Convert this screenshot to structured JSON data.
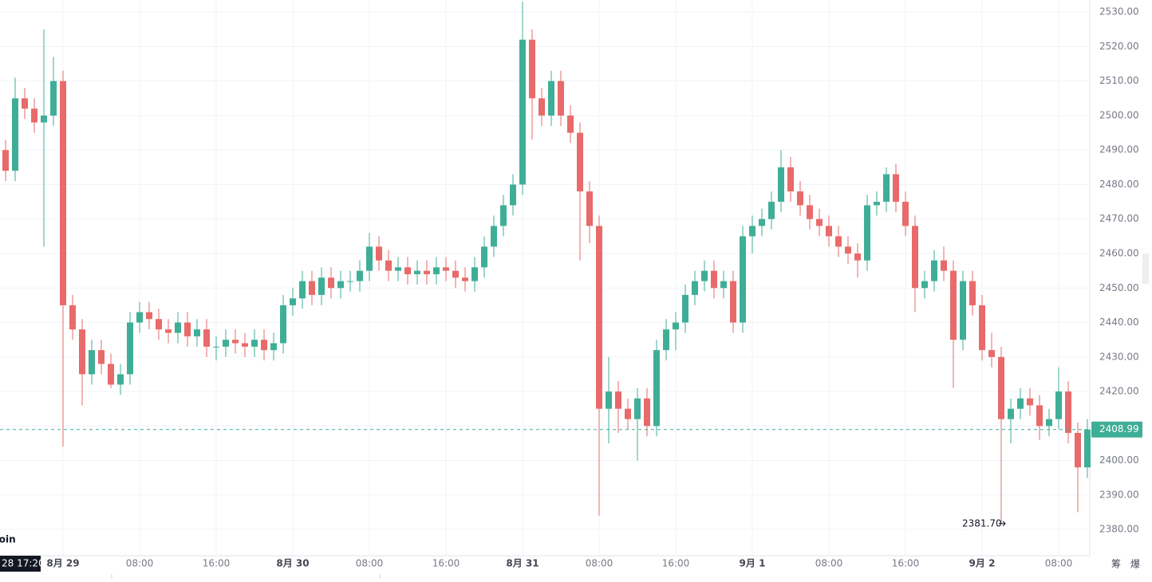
{
  "chart_data": {
    "type": "candlestick",
    "up_color": "#3fae96",
    "down_color": "#e86a6a",
    "grid": true,
    "ylim": [
      2372.4,
      2533.5
    ],
    "yticks": [
      {
        "value": 2380,
        "label": "2380.00"
      },
      {
        "value": 2390,
        "label": "2390.00"
      },
      {
        "value": 2400,
        "label": "2400.00"
      },
      {
        "value": 2410,
        "label": "2410.00"
      },
      {
        "value": 2420,
        "label": "2420.00"
      },
      {
        "value": 2430,
        "label": "2430.00"
      },
      {
        "value": 2440,
        "label": "2440.00"
      },
      {
        "value": 2450,
        "label": "2450.00"
      },
      {
        "value": 2460,
        "label": "2460.00"
      },
      {
        "value": 2470,
        "label": "2470.00"
      },
      {
        "value": 2480,
        "label": "2480.00"
      },
      {
        "value": 2490,
        "label": "2490.00"
      },
      {
        "value": 2500,
        "label": "2500.00"
      },
      {
        "value": 2510,
        "label": "2510.00"
      },
      {
        "value": 2520,
        "label": "2520.00"
      },
      {
        "value": 2530,
        "label": "2530.00"
      }
    ],
    "categories": [
      null,
      null,
      null,
      null,
      null,
      null,
      "8月 29",
      null,
      null,
      null,
      null,
      null,
      null,
      null,
      "08:00",
      null,
      null,
      null,
      null,
      null,
      null,
      null,
      "16:00",
      null,
      null,
      null,
      null,
      null,
      null,
      null,
      "8月 30",
      null,
      null,
      null,
      null,
      null,
      null,
      null,
      "08:00",
      null,
      null,
      null,
      null,
      null,
      null,
      null,
      "16:00",
      null,
      null,
      null,
      null,
      null,
      null,
      null,
      "8月 31",
      null,
      null,
      null,
      null,
      null,
      null,
      null,
      "08:00",
      null,
      null,
      null,
      null,
      null,
      null,
      null,
      "16:00",
      null,
      null,
      null,
      null,
      null,
      null,
      null,
      "9月 1",
      null,
      null,
      null,
      null,
      null,
      null,
      null,
      "08:00",
      null,
      null,
      null,
      null,
      null,
      null,
      null,
      "16:00",
      null,
      null,
      null,
      null,
      null,
      null,
      null,
      "9月 2",
      null,
      null,
      null,
      null,
      null,
      null,
      null,
      "08:00",
      null,
      null,
      null
    ],
    "open": [
      2490,
      2484,
      2505,
      2502,
      2498,
      2500,
      2510,
      2445,
      2438,
      2425,
      2432,
      2428,
      2422,
      2425,
      2440,
      2443,
      2441,
      2438,
      2437,
      2440,
      2436,
      2438,
      2433,
      2433,
      2435,
      2434,
      2433,
      2435,
      2432,
      2434,
      2445,
      2447,
      2452,
      2448,
      2453,
      2450,
      2452,
      2452,
      2455,
      2462,
      2458,
      2455,
      2456,
      2454,
      2455,
      2454,
      2456,
      2455,
      2453,
      2452,
      2456,
      2462,
      2468,
      2474,
      2480,
      2522,
      2505,
      2500,
      2510,
      2500,
      2495,
      2478,
      2468,
      2415,
      2420,
      2415,
      2412,
      2418,
      2410,
      2432,
      2438,
      2440,
      2448,
      2452,
      2455,
      2450,
      2452,
      2440,
      2465,
      2468,
      2470,
      2475,
      2485,
      2478,
      2474,
      2470,
      2468,
      2465,
      2462,
      2460,
      2458,
      2474,
      2475,
      2483,
      2475,
      2468,
      2450,
      2452,
      2458,
      2455,
      2435,
      2452,
      2445,
      2432,
      2430,
      2412,
      2415,
      2418,
      2416,
      2410,
      2412,
      2420,
      2408,
      2398
    ],
    "high": [
      2493,
      2511,
      2508,
      2505,
      2525,
      2517,
      2513,
      2448,
      2441,
      2435,
      2435,
      2431,
      2428,
      2443,
      2446,
      2446,
      2444,
      2441,
      2443,
      2443,
      2441,
      2441,
      2436,
      2438,
      2438,
      2437,
      2438,
      2438,
      2437,
      2448,
      2450,
      2455,
      2455,
      2456,
      2456,
      2455,
      2455,
      2458,
      2466,
      2465,
      2461,
      2459,
      2459,
      2458,
      2458,
      2459,
      2459,
      2458,
      2456,
      2459,
      2465,
      2471,
      2477,
      2483,
      2533,
      2525,
      2508,
      2513,
      2513,
      2503,
      2498,
      2481,
      2471,
      2430,
      2423,
      2418,
      2421,
      2421,
      2435,
      2441,
      2443,
      2451,
      2455,
      2458,
      2458,
      2455,
      2455,
      2468,
      2471,
      2473,
      2478,
      2490,
      2488,
      2481,
      2477,
      2473,
      2471,
      2468,
      2465,
      2463,
      2477,
      2478,
      2485,
      2486,
      2478,
      2471,
      2455,
      2461,
      2462,
      2458,
      2455,
      2455,
      2448,
      2437,
      2433,
      2418,
      2421,
      2421,
      2419,
      2415,
      2427,
      2423,
      2411,
      2412
    ],
    "low": [
      2481,
      2481,
      2499,
      2495,
      2462,
      2497,
      2404,
      2435,
      2416,
      2422,
      2425,
      2421,
      2419,
      2422,
      2437,
      2438,
      2435,
      2434,
      2434,
      2433,
      2433,
      2430,
      2429,
      2430,
      2431,
      2430,
      2430,
      2429,
      2429,
      2431,
      2442,
      2444,
      2445,
      2445,
      2447,
      2447,
      2449,
      2449,
      2452,
      2455,
      2452,
      2452,
      2451,
      2451,
      2451,
      2451,
      2452,
      2450,
      2449,
      2449,
      2453,
      2459,
      2465,
      2471,
      2477,
      2493,
      2497,
      2497,
      2497,
      2492,
      2458,
      2463,
      2384,
      2405,
      2408,
      2409,
      2400,
      2407,
      2407,
      2429,
      2432,
      2437,
      2445,
      2449,
      2447,
      2447,
      2437,
      2437,
      2460,
      2465,
      2467,
      2472,
      2475,
      2471,
      2467,
      2465,
      2462,
      2459,
      2457,
      2453,
      2455,
      2471,
      2472,
      2472,
      2465,
      2443,
      2447,
      2449,
      2452,
      2421,
      2432,
      2442,
      2429,
      2427,
      2381.7,
      2405,
      2412,
      2413,
      2406,
      2407,
      2409,
      2405,
      2385,
      2395
    ],
    "close": [
      2484,
      2505,
      2502,
      2498,
      2500,
      2510,
      2445,
      2438,
      2425,
      2432,
      2428,
      2422,
      2425,
      2440,
      2443,
      2441,
      2438,
      2437,
      2440,
      2436,
      2438,
      2433,
      2433,
      2435,
      2434,
      2433,
      2435,
      2432,
      2434,
      2445,
      2447,
      2452,
      2448,
      2453,
      2450,
      2452,
      2452,
      2455,
      2462,
      2458,
      2455,
      2456,
      2454,
      2455,
      2454,
      2456,
      2455,
      2453,
      2452,
      2456,
      2462,
      2468,
      2474,
      2480,
      2522,
      2505,
      2500,
      2510,
      2500,
      2495,
      2478,
      2468,
      2415,
      2420,
      2415,
      2412,
      2418,
      2410,
      2432,
      2438,
      2440,
      2448,
      2452,
      2455,
      2450,
      2452,
      2440,
      2465,
      2468,
      2470,
      2475,
      2485,
      2478,
      2474,
      2470,
      2468,
      2465,
      2462,
      2460,
      2458,
      2474,
      2475,
      2483,
      2475,
      2468,
      2450,
      2452,
      2458,
      2455,
      2435,
      2452,
      2445,
      2432,
      2430,
      2412,
      2415,
      2418,
      2416,
      2410,
      2412,
      2420,
      2408,
      2398,
      2408.99
    ],
    "last_price": 2408.99,
    "low_marker": {
      "value": 2381.7,
      "label": "2381.70"
    },
    "cursor_time": "28 17:20",
    "watermark": "Coin",
    "corner_buttons": [
      "筹",
      "爆"
    ]
  }
}
